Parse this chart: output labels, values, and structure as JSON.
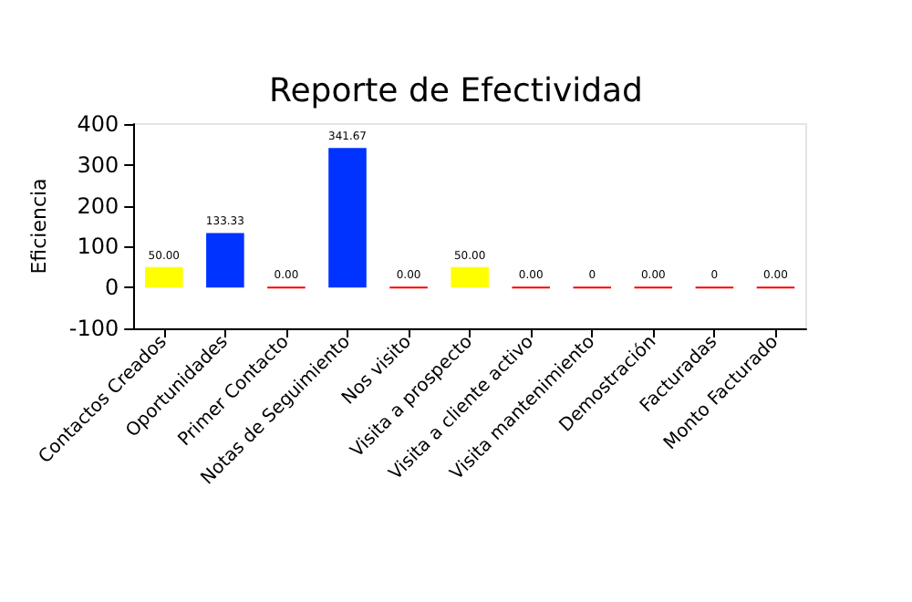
{
  "chart_data": {
    "type": "bar",
    "title": "Reporte de Efectividad",
    "ylabel": "Eficiencia",
    "categories": [
      "Contactos Creados",
      "Oportunidades",
      "Primer Contacto",
      "Notas de Seguimiento",
      "Nos visito",
      "Visita a prospecto",
      "Visita a cliente activo",
      "Visita mantenimiento",
      "Demostración",
      "Facturadas",
      "Monto Facturado"
    ],
    "values": [
      50,
      133.33,
      0,
      341.67,
      0,
      50,
      0,
      0,
      0,
      0,
      0
    ],
    "colors": [
      "#ffff00",
      "#0033ff",
      "#ff0000",
      "#0033ff",
      "#ff0000",
      "#ffff00",
      "#ff0000",
      "#ff0000",
      "#ff0000",
      "#ff0000",
      "#ff0000"
    ],
    "value_labels": [
      "50.00",
      "133.33",
      "0.00",
      "341.67",
      "0.00",
      "50.00",
      "0.00",
      "0",
      "0.00",
      "0",
      "0.00"
    ],
    "ylim": [
      -100,
      400
    ],
    "yticks": [
      -100,
      0,
      100,
      200,
      300,
      400
    ],
    "grid": false
  }
}
